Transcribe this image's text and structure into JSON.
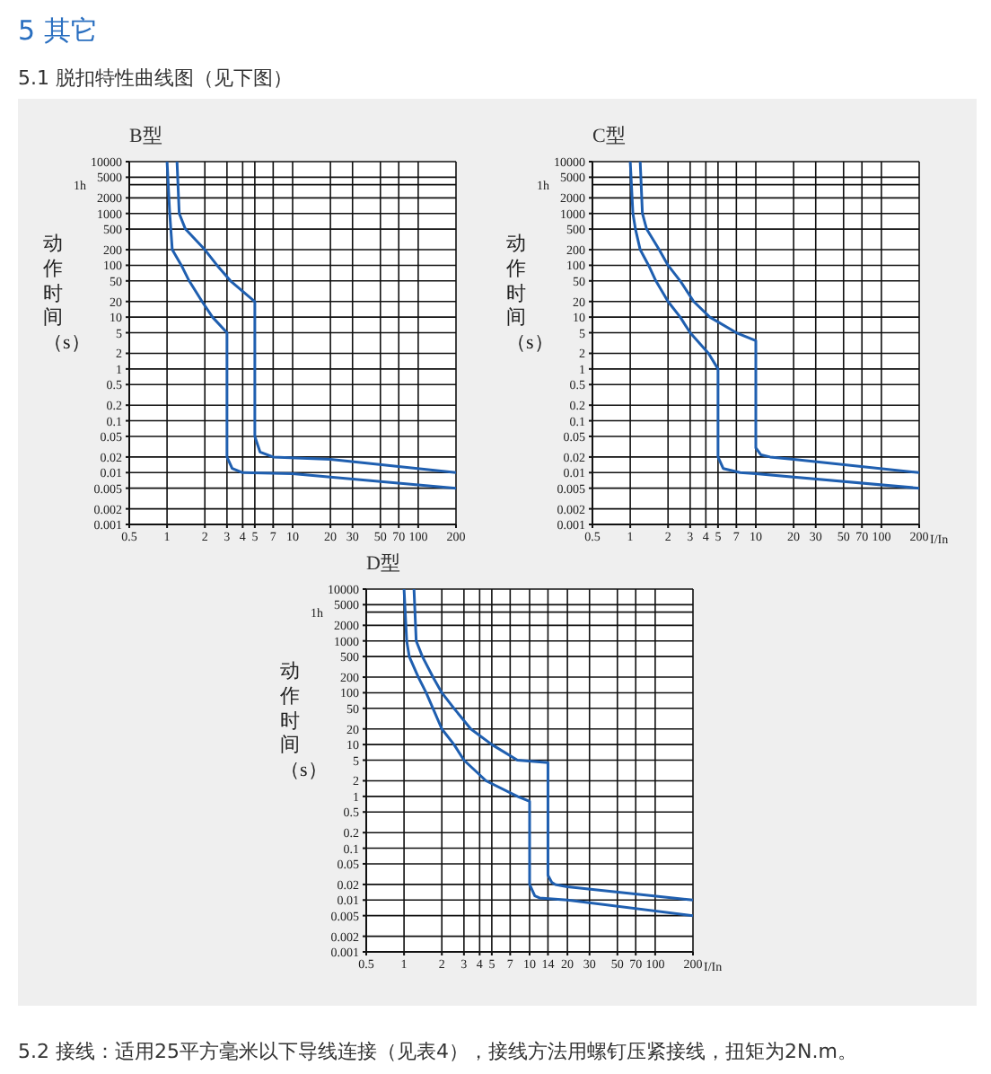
{
  "chart_data": [
    {
      "type": "line",
      "title": "B型",
      "ylabel": "动作时间（s）",
      "annotations": [
        "5 其它",
        "5.1 脱扣特性曲线图（见下图）",
        "5.2 接线：适用25平方毫米以下导线连接（见表4），接线方法用螺钉压紧接线，扭矩为2N.m。"
      ],
      "xlim": [
        0.5,
        200
      ],
      "xticks": [
        0.5,
        1,
        2,
        3,
        4,
        5,
        7,
        10,
        20,
        30,
        50,
        70,
        100,
        200
      ],
      "log": "xy",
      "ylim": [
        0.001,
        10000
      ],
      "yticks": [
        0.001,
        0.002,
        0.005,
        0.01,
        0.02,
        0.05,
        0.1,
        0.2,
        0.5,
        1,
        2,
        5,
        10,
        20,
        50,
        100,
        200,
        500,
        1000,
        2000,
        5000,
        10000
      ],
      "grid": true,
      "ref_lines": [
        {
          "axis": "y",
          "value": 3600,
          "label": "1h",
          "color": "#111111"
        }
      ],
      "series": [
        {
          "color": "#1f5fb0",
          "x": [
            1,
            1.05,
            1.1,
            1.3,
            1.5,
            1.9,
            2.3,
            3,
            3,
            3.3,
            4,
            10,
            200
          ],
          "values": [
            10000,
            1000,
            200,
            100,
            50,
            20,
            10,
            5,
            0.02,
            0.012,
            0.01,
            0.0095,
            0.005
          ]
        },
        {
          "color": "#1f5fb0",
          "x": [
            1.2,
            1.25,
            1.4,
            2,
            2.5,
            3.2,
            5,
            5,
            5.5,
            7,
            20,
            200
          ],
          "values": [
            10000,
            1000,
            500,
            200,
            100,
            50,
            20,
            0.05,
            0.025,
            0.02,
            0.018,
            0.01
          ]
        }
      ]
    },
    {
      "type": "line",
      "title": "C型",
      "ylabel": "动作时间（s）",
      "xlabel": "I/In",
      "xlim": [
        0.5,
        200
      ],
      "xticks": [
        0.5,
        1,
        2,
        3,
        4,
        5,
        7,
        10,
        20,
        30,
        50,
        70,
        100,
        200
      ],
      "log": "xy",
      "ylim": [
        0.001,
        10000
      ],
      "yticks": [
        0.001,
        0.002,
        0.005,
        0.01,
        0.02,
        0.05,
        0.1,
        0.2,
        0.5,
        1,
        2,
        5,
        10,
        20,
        50,
        100,
        200,
        500,
        1000,
        2000,
        5000,
        10000
      ],
      "grid": true,
      "ref_lines": [
        {
          "axis": "y",
          "value": 3600,
          "label": "1h",
          "color": "#111111"
        }
      ],
      "series": [
        {
          "color": "#1f5fb0",
          "x": [
            1,
            1.05,
            1.1,
            1.2,
            1.4,
            1.6,
            2,
            2.5,
            3,
            4.2,
            5,
            5,
            5.5,
            7.5,
            10,
            200
          ],
          "values": [
            10000,
            1000,
            500,
            200,
            100,
            50,
            20,
            10,
            5,
            2,
            1,
            0.02,
            0.012,
            0.01,
            0.0095,
            0.005
          ]
        },
        {
          "color": "#1f5fb0",
          "x": [
            1.2,
            1.25,
            1.35,
            1.7,
            2,
            2.5,
            3.2,
            4.3,
            7,
            10,
            10,
            11,
            13,
            20,
            200
          ],
          "values": [
            10000,
            1000,
            500,
            200,
            100,
            50,
            20,
            10,
            5,
            3.5,
            0.03,
            0.022,
            0.02,
            0.018,
            0.01
          ]
        }
      ]
    },
    {
      "type": "line",
      "title": "D型",
      "ylabel": "动作时间（s）",
      "xlabel": "I/In",
      "xlim": [
        0.5,
        200
      ],
      "xticks": [
        0.5,
        1,
        2,
        3,
        4,
        5,
        7,
        10,
        14,
        20,
        30,
        50,
        70,
        100,
        200
      ],
      "log": "xy",
      "ylim": [
        0.001,
        10000
      ],
      "yticks": [
        0.001,
        0.002,
        0.005,
        0.01,
        0.02,
        0.05,
        0.1,
        0.2,
        0.5,
        1,
        2,
        5,
        10,
        20,
        50,
        100,
        200,
        500,
        1000,
        2000,
        5000,
        10000
      ],
      "grid": true,
      "ref_lines": [
        {
          "axis": "y",
          "value": 3600,
          "label": "1h",
          "color": "#111111"
        }
      ],
      "series": [
        {
          "color": "#1f5fb0",
          "x": [
            1,
            1.05,
            1.1,
            1.3,
            1.5,
            1.7,
            2,
            2.5,
            3,
            4.5,
            8,
            10,
            10,
            11,
            12,
            20,
            200
          ],
          "values": [
            10000,
            1000,
            500,
            200,
            100,
            50,
            20,
            10,
            5,
            2,
            1,
            0.8,
            0.02,
            0.012,
            0.011,
            0.01,
            0.005
          ]
        },
        {
          "color": "#1f5fb0",
          "x": [
            1.2,
            1.25,
            1.4,
            1.7,
            2,
            2.5,
            3.4,
            5,
            8,
            14,
            14,
            15,
            16,
            20,
            200
          ],
          "values": [
            10000,
            1000,
            500,
            200,
            100,
            50,
            20,
            10,
            5,
            4.5,
            0.03,
            0.022,
            0.02,
            0.018,
            0.01
          ]
        }
      ]
    }
  ]
}
